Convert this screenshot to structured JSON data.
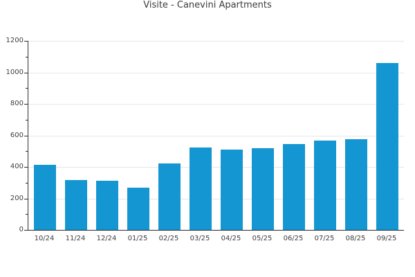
{
  "title": "Visite - Canevini Apartments",
  "colors": {
    "bar": "#1496d2",
    "grid": "#e6e6e6",
    "axis": "#2b2b2b",
    "text": "#3c3c3c"
  },
  "chart_data": {
    "type": "bar",
    "title": "Visite - Canevini Apartments",
    "categories": [
      "10/24",
      "11/24",
      "12/24",
      "01/25",
      "02/25",
      "03/25",
      "04/25",
      "05/25",
      "06/25",
      "07/25",
      "08/25",
      "09/25"
    ],
    "values": [
      415,
      315,
      313,
      266,
      424,
      523,
      512,
      520,
      547,
      566,
      576,
      1060
    ],
    "xlabel": "",
    "ylabel": "",
    "ylim": [
      0,
      1200
    ],
    "ytick_step": 200,
    "minor_tick_step": 100,
    "grid": true,
    "legend_position": "none",
    "bar_color": "#1496d2"
  }
}
